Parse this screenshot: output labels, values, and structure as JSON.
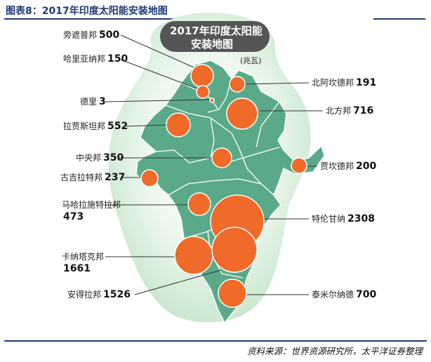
{
  "header": {
    "figure_title": "图表8：2017年印度太阳能安装地图"
  },
  "map": {
    "title_line1": "2017年印度太阳能",
    "title_line2": "安装地图",
    "unit": "(兆瓦)",
    "colors": {
      "land": "#5aaa8a",
      "bubble": "#f06a2a",
      "glow": "#d8efdc",
      "border": "#ffffff"
    },
    "states": [
      {
        "name": "旁遮普邦",
        "value": "500"
      },
      {
        "name": "哈里亚纳邦",
        "value": "150"
      },
      {
        "name": "德里",
        "value": "3"
      },
      {
        "name": "拉贾斯坦邦",
        "value": "552"
      },
      {
        "name": "中央邦",
        "value": "350"
      },
      {
        "name": "古吉拉特邦",
        "value": "237"
      },
      {
        "name": "马哈拉施特拉邦",
        "value": "473"
      },
      {
        "name": "卡纳塔克邦",
        "value": "1661"
      },
      {
        "name": "安得拉邦",
        "value": "1526"
      },
      {
        "name": "北阿坎德邦",
        "value": "191"
      },
      {
        "name": "北方邦",
        "value": "716"
      },
      {
        "name": "贾坎德邦",
        "value": "200"
      },
      {
        "name": "特伦甘纳",
        "value": "2308"
      },
      {
        "name": "泰米尔纳德",
        "value": "700"
      }
    ]
  },
  "source": "资料来源：世界资源研究所，太平洋证券整理"
}
